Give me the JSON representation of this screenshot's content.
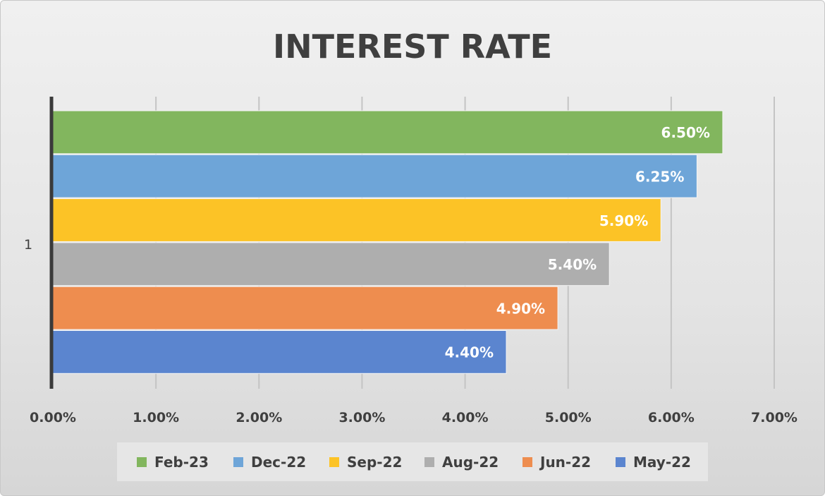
{
  "chart_data": {
    "type": "bar",
    "orientation": "horizontal",
    "title": "INTEREST RATE",
    "categories": [
      "1"
    ],
    "series": [
      {
        "name": "Feb-23",
        "values": [
          6.5
        ],
        "label": "6.50%",
        "color": "#82b65e"
      },
      {
        "name": "Dec-22",
        "values": [
          6.25
        ],
        "label": "6.25%",
        "color": "#6ea5d8"
      },
      {
        "name": "Sep-22",
        "values": [
          5.9
        ],
        "label": "5.90%",
        "color": "#fcc326"
      },
      {
        "name": "Aug-22",
        "values": [
          5.4
        ],
        "label": "5.40%",
        "color": "#aeaeae"
      },
      {
        "name": "Jun-22",
        "values": [
          4.9
        ],
        "label": "4.90%",
        "color": "#ee8d4f"
      },
      {
        "name": "May-22",
        "values": [
          4.4
        ],
        "label": "4.40%",
        "color": "#5b85cf"
      }
    ],
    "xlim": [
      0,
      7
    ],
    "xticks": [
      "0.00%",
      "1.00%",
      "2.00%",
      "3.00%",
      "4.00%",
      "5.00%",
      "6.00%",
      "7.00%"
    ],
    "grid": true,
    "legend": "bottom",
    "xlabel": "",
    "ylabel": ""
  }
}
